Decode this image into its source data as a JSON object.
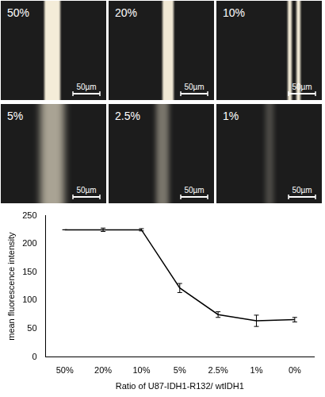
{
  "panels": [
    {
      "label": "50%",
      "scale_bar": "50µm"
    },
    {
      "label": "20%",
      "scale_bar": "50µm"
    },
    {
      "label": "10%",
      "scale_bar": "50µm"
    },
    {
      "label": "5%",
      "scale_bar": "50µm"
    },
    {
      "label": "2.5%",
      "scale_bar": "50µm"
    },
    {
      "label": "1%",
      "scale_bar": "50µm"
    }
  ],
  "chart_data": {
    "type": "line",
    "x_label": "Ratio of U87-IDH1-R132/ wtIDH1",
    "y_label": "mean fluorescence intensity",
    "categories": [
      "50%",
      "20%",
      "10%",
      "5%",
      "2.5%",
      "1%",
      "0%"
    ],
    "values": [
      225,
      225,
      225,
      122,
      75,
      64,
      66
    ],
    "errors": [
      0,
      3,
      2,
      8,
      5,
      10,
      4
    ],
    "color": "#000000",
    "ylim": [
      0,
      250
    ],
    "yticks": [
      0,
      50,
      100,
      150,
      200,
      250
    ],
    "grid": false
  }
}
